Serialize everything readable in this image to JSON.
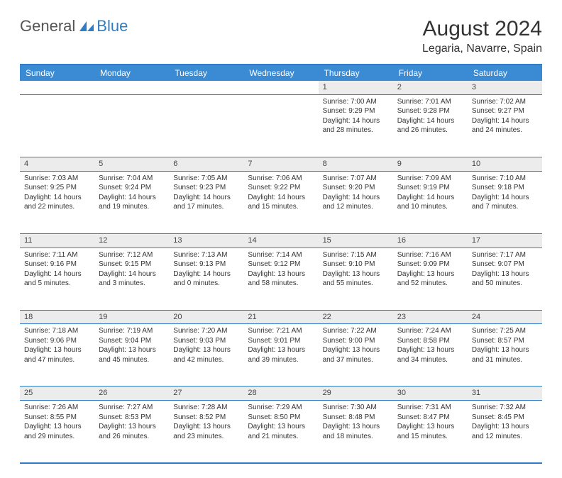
{
  "brand": {
    "part1": "General",
    "part2": "Blue",
    "icon_color": "#2f7dc4"
  },
  "title": "August 2024",
  "location": "Legaria, Navarre, Spain",
  "colors": {
    "header_bg": "#3b8bd4",
    "header_border": "#2f7dc4",
    "daynum_bg": "#ececec",
    "text": "#333333",
    "bg": "#ffffff"
  },
  "weekdays": [
    "Sunday",
    "Monday",
    "Tuesday",
    "Wednesday",
    "Thursday",
    "Friday",
    "Saturday"
  ],
  "weeks": [
    [
      null,
      null,
      null,
      null,
      {
        "d": "1",
        "sr": "7:00 AM",
        "ss": "9:29 PM",
        "dl": "14 hours and 28 minutes."
      },
      {
        "d": "2",
        "sr": "7:01 AM",
        "ss": "9:28 PM",
        "dl": "14 hours and 26 minutes."
      },
      {
        "d": "3",
        "sr": "7:02 AM",
        "ss": "9:27 PM",
        "dl": "14 hours and 24 minutes."
      }
    ],
    [
      {
        "d": "4",
        "sr": "7:03 AM",
        "ss": "9:25 PM",
        "dl": "14 hours and 22 minutes."
      },
      {
        "d": "5",
        "sr": "7:04 AM",
        "ss": "9:24 PM",
        "dl": "14 hours and 19 minutes."
      },
      {
        "d": "6",
        "sr": "7:05 AM",
        "ss": "9:23 PM",
        "dl": "14 hours and 17 minutes."
      },
      {
        "d": "7",
        "sr": "7:06 AM",
        "ss": "9:22 PM",
        "dl": "14 hours and 15 minutes."
      },
      {
        "d": "8",
        "sr": "7:07 AM",
        "ss": "9:20 PM",
        "dl": "14 hours and 12 minutes."
      },
      {
        "d": "9",
        "sr": "7:09 AM",
        "ss": "9:19 PM",
        "dl": "14 hours and 10 minutes."
      },
      {
        "d": "10",
        "sr": "7:10 AM",
        "ss": "9:18 PM",
        "dl": "14 hours and 7 minutes."
      }
    ],
    [
      {
        "d": "11",
        "sr": "7:11 AM",
        "ss": "9:16 PM",
        "dl": "14 hours and 5 minutes."
      },
      {
        "d": "12",
        "sr": "7:12 AM",
        "ss": "9:15 PM",
        "dl": "14 hours and 3 minutes."
      },
      {
        "d": "13",
        "sr": "7:13 AM",
        "ss": "9:13 PM",
        "dl": "14 hours and 0 minutes."
      },
      {
        "d": "14",
        "sr": "7:14 AM",
        "ss": "9:12 PM",
        "dl": "13 hours and 58 minutes."
      },
      {
        "d": "15",
        "sr": "7:15 AM",
        "ss": "9:10 PM",
        "dl": "13 hours and 55 minutes."
      },
      {
        "d": "16",
        "sr": "7:16 AM",
        "ss": "9:09 PM",
        "dl": "13 hours and 52 minutes."
      },
      {
        "d": "17",
        "sr": "7:17 AM",
        "ss": "9:07 PM",
        "dl": "13 hours and 50 minutes."
      }
    ],
    [
      {
        "d": "18",
        "sr": "7:18 AM",
        "ss": "9:06 PM",
        "dl": "13 hours and 47 minutes."
      },
      {
        "d": "19",
        "sr": "7:19 AM",
        "ss": "9:04 PM",
        "dl": "13 hours and 45 minutes."
      },
      {
        "d": "20",
        "sr": "7:20 AM",
        "ss": "9:03 PM",
        "dl": "13 hours and 42 minutes."
      },
      {
        "d": "21",
        "sr": "7:21 AM",
        "ss": "9:01 PM",
        "dl": "13 hours and 39 minutes."
      },
      {
        "d": "22",
        "sr": "7:22 AM",
        "ss": "9:00 PM",
        "dl": "13 hours and 37 minutes."
      },
      {
        "d": "23",
        "sr": "7:24 AM",
        "ss": "8:58 PM",
        "dl": "13 hours and 34 minutes."
      },
      {
        "d": "24",
        "sr": "7:25 AM",
        "ss": "8:57 PM",
        "dl": "13 hours and 31 minutes."
      }
    ],
    [
      {
        "d": "25",
        "sr": "7:26 AM",
        "ss": "8:55 PM",
        "dl": "13 hours and 29 minutes."
      },
      {
        "d": "26",
        "sr": "7:27 AM",
        "ss": "8:53 PM",
        "dl": "13 hours and 26 minutes."
      },
      {
        "d": "27",
        "sr": "7:28 AM",
        "ss": "8:52 PM",
        "dl": "13 hours and 23 minutes."
      },
      {
        "d": "28",
        "sr": "7:29 AM",
        "ss": "8:50 PM",
        "dl": "13 hours and 21 minutes."
      },
      {
        "d": "29",
        "sr": "7:30 AM",
        "ss": "8:48 PM",
        "dl": "13 hours and 18 minutes."
      },
      {
        "d": "30",
        "sr": "7:31 AM",
        "ss": "8:47 PM",
        "dl": "13 hours and 15 minutes."
      },
      {
        "d": "31",
        "sr": "7:32 AM",
        "ss": "8:45 PM",
        "dl": "13 hours and 12 minutes."
      }
    ]
  ],
  "labels": {
    "sunrise": "Sunrise:",
    "sunset": "Sunset:",
    "daylight": "Daylight:"
  }
}
